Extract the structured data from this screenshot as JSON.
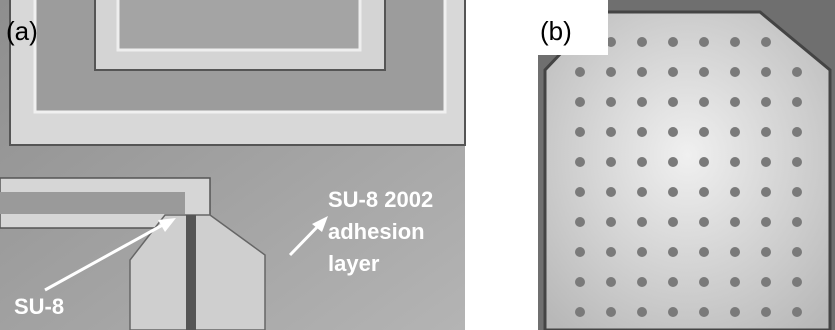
{
  "panels": [
    {
      "label": "(a)",
      "annotations": [
        {
          "lines": [
            "SU-8 2002",
            "adhesion",
            "layer"
          ]
        },
        {
          "lines": [
            "SU-8"
          ]
        }
      ]
    },
    {
      "label": "(b)"
    }
  ]
}
